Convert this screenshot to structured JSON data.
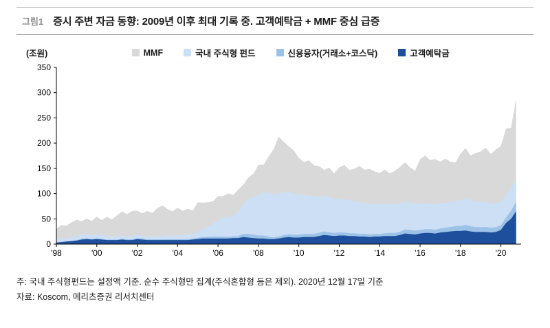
{
  "header": {
    "tag": "그림1",
    "title": "증시 주변 자금 동향: 2009년 이후 최대 기록 중. 고객예탁금 + MMF 중심 급증"
  },
  "legend": {
    "items": [
      {
        "label": "MMF",
        "color": "#d9d9d9"
      },
      {
        "label": "국내 주식형 펀드",
        "color": "#cddff4"
      },
      {
        "label": "신용융자(거래소+코스닥)",
        "color": "#9cc2e8"
      },
      {
        "label": "고객예탁금",
        "color": "#1d4f9c"
      }
    ]
  },
  "notes": {
    "line1": "주: 국내 주식형펀드는 설정액 기준. 순수 주식형만 집계(주식혼합형 등은 제외). 2020년 12월 17일 기준",
    "line2": "자료: Koscom, 메리츠증권 리서치센터"
  },
  "chart_data": {
    "type": "area",
    "stacked": true,
    "unit_label": "(조원)",
    "xlim": [
      1998,
      2021
    ],
    "ylim": [
      0,
      350
    ],
    "y_ticks": [
      0,
      50,
      100,
      150,
      200,
      250,
      300,
      350
    ],
    "x_tick_values": [
      1998,
      2000,
      2002,
      2004,
      2006,
      2008,
      2010,
      2012,
      2014,
      2016,
      2018,
      2020
    ],
    "x_tick_labels": [
      "'98",
      "'00",
      "'02",
      "'04",
      "'06",
      "'08",
      "'10",
      "'12",
      "'14",
      "'16",
      "'18",
      "'20"
    ],
    "legend_position": "top",
    "grid": false,
    "x": [
      1998,
      1998.25,
      1998.5,
      1998.75,
      1999,
      1999.25,
      1999.5,
      1999.75,
      2000,
      2000.25,
      2000.5,
      2000.75,
      2001,
      2001.25,
      2001.5,
      2001.75,
      2002,
      2002.25,
      2002.5,
      2002.75,
      2003,
      2003.25,
      2003.5,
      2003.75,
      2004,
      2004.25,
      2004.5,
      2004.75,
      2005,
      2005.25,
      2005.5,
      2005.75,
      2006,
      2006.25,
      2006.5,
      2006.75,
      2007,
      2007.25,
      2007.5,
      2007.75,
      2008,
      2008.25,
      2008.5,
      2008.75,
      2009,
      2009.25,
      2009.5,
      2009.75,
      2010,
      2010.25,
      2010.5,
      2010.75,
      2011,
      2011.25,
      2011.5,
      2011.75,
      2012,
      2012.25,
      2012.5,
      2012.75,
      2013,
      2013.25,
      2013.5,
      2013.75,
      2014,
      2014.25,
      2014.5,
      2014.75,
      2015,
      2015.25,
      2015.5,
      2015.75,
      2016,
      2016.25,
      2016.5,
      2016.75,
      2017,
      2017.25,
      2017.5,
      2017.75,
      2018,
      2018.25,
      2018.5,
      2018.75,
      2019,
      2019.25,
      2019.5,
      2019.75,
      2020,
      2020.25,
      2020.5,
      2020.75
    ],
    "series": [
      {
        "name": "고객예탁금",
        "color": "#1d4f9c",
        "values": [
          3,
          4,
          5,
          6,
          7,
          9,
          10,
          9,
          10,
          9,
          8,
          8,
          8,
          9,
          8,
          8,
          10,
          9,
          8,
          8,
          8,
          8,
          8,
          8,
          8,
          8,
          8,
          9,
          10,
          11,
          11,
          11,
          11,
          11,
          11,
          12,
          12,
          14,
          13,
          12,
          11,
          11,
          10,
          10,
          11,
          13,
          14,
          13,
          13,
          14,
          14,
          14,
          16,
          18,
          17,
          16,
          17,
          17,
          16,
          16,
          15,
          15,
          14,
          15,
          15,
          16,
          16,
          16,
          18,
          21,
          20,
          19,
          21,
          22,
          22,
          21,
          23,
          24,
          25,
          26,
          26,
          27,
          25,
          24,
          24,
          24,
          23,
          24,
          28,
          42,
          50,
          65
        ]
      },
      {
        "name": "신용융자(거래소+코스닥)",
        "color": "#9cc2e8",
        "values": [
          0.5,
          0.5,
          0.5,
          0.5,
          1,
          1.5,
          1.5,
          1,
          1.5,
          1.5,
          1,
          1,
          1,
          1.5,
          1.5,
          1.5,
          2,
          2,
          1.5,
          1.5,
          1.5,
          1.5,
          2,
          2,
          2,
          2,
          2,
          2,
          2.5,
          3,
          3.5,
          4,
          4,
          4,
          3.5,
          3.5,
          4,
          6,
          7,
          6.5,
          6,
          6,
          5,
          3,
          4,
          5,
          5.5,
          5.5,
          5.5,
          6,
          6,
          6,
          6.5,
          7,
          6.5,
          6,
          6,
          6,
          5.5,
          5.5,
          5.5,
          5.5,
          5,
          5,
          5,
          5.5,
          6,
          6,
          6.5,
          8,
          8,
          7.5,
          7,
          7.5,
          7.5,
          7.5,
          8,
          8.5,
          9,
          9.5,
          10,
          11,
          10.5,
          9.5,
          9.5,
          10,
          9.5,
          9.5,
          9,
          11,
          16,
          19
        ]
      },
      {
        "name": "국내 주식형 펀드",
        "color": "#cddff4",
        "values": [
          5,
          5,
          6,
          7,
          8,
          9,
          9,
          8,
          8,
          7,
          7,
          6,
          6,
          6,
          6,
          6,
          6,
          6,
          6,
          6,
          6,
          7,
          7,
          7,
          7,
          8,
          8,
          9,
          12,
          16,
          20,
          26,
          32,
          38,
          40,
          42,
          48,
          60,
          70,
          75,
          80,
          85,
          88,
          85,
          85,
          85,
          84,
          82,
          80,
          78,
          76,
          74,
          72,
          70,
          70,
          68,
          67,
          66,
          65,
          64,
          62,
          61,
          60,
          60,
          59,
          58,
          58,
          57,
          56,
          55,
          54,
          53,
          52,
          52,
          51,
          50,
          50,
          49,
          49,
          50,
          51,
          52,
          52,
          51,
          50,
          49,
          48,
          48,
          47,
          46,
          46,
          46
        ]
      },
      {
        "name": "MMF",
        "color": "#d9d9d9",
        "values": [
          22,
          28,
          25,
          30,
          32,
          26,
          30,
          28,
          35,
          30,
          38,
          34,
          42,
          48,
          44,
          50,
          48,
          44,
          50,
          46,
          56,
          60,
          52,
          48,
          55,
          48,
          52,
          46,
          58,
          52,
          48,
          44,
          48,
          42,
          46,
          40,
          44,
          38,
          42,
          46,
          60,
          55,
          70,
          90,
          113,
          100,
          90,
          85,
          72,
          65,
          70,
          62,
          60,
          52,
          58,
          50,
          62,
          68,
          60,
          64,
          72,
          66,
          70,
          64,
          62,
          68,
          60,
          66,
          72,
          78,
          70,
          66,
          88,
          94,
          86,
          90,
          82,
          88,
          80,
          76,
          92,
          100,
          88,
          96,
          100,
          108,
          98,
          106,
          110,
          130,
          118,
          158
        ]
      }
    ]
  }
}
